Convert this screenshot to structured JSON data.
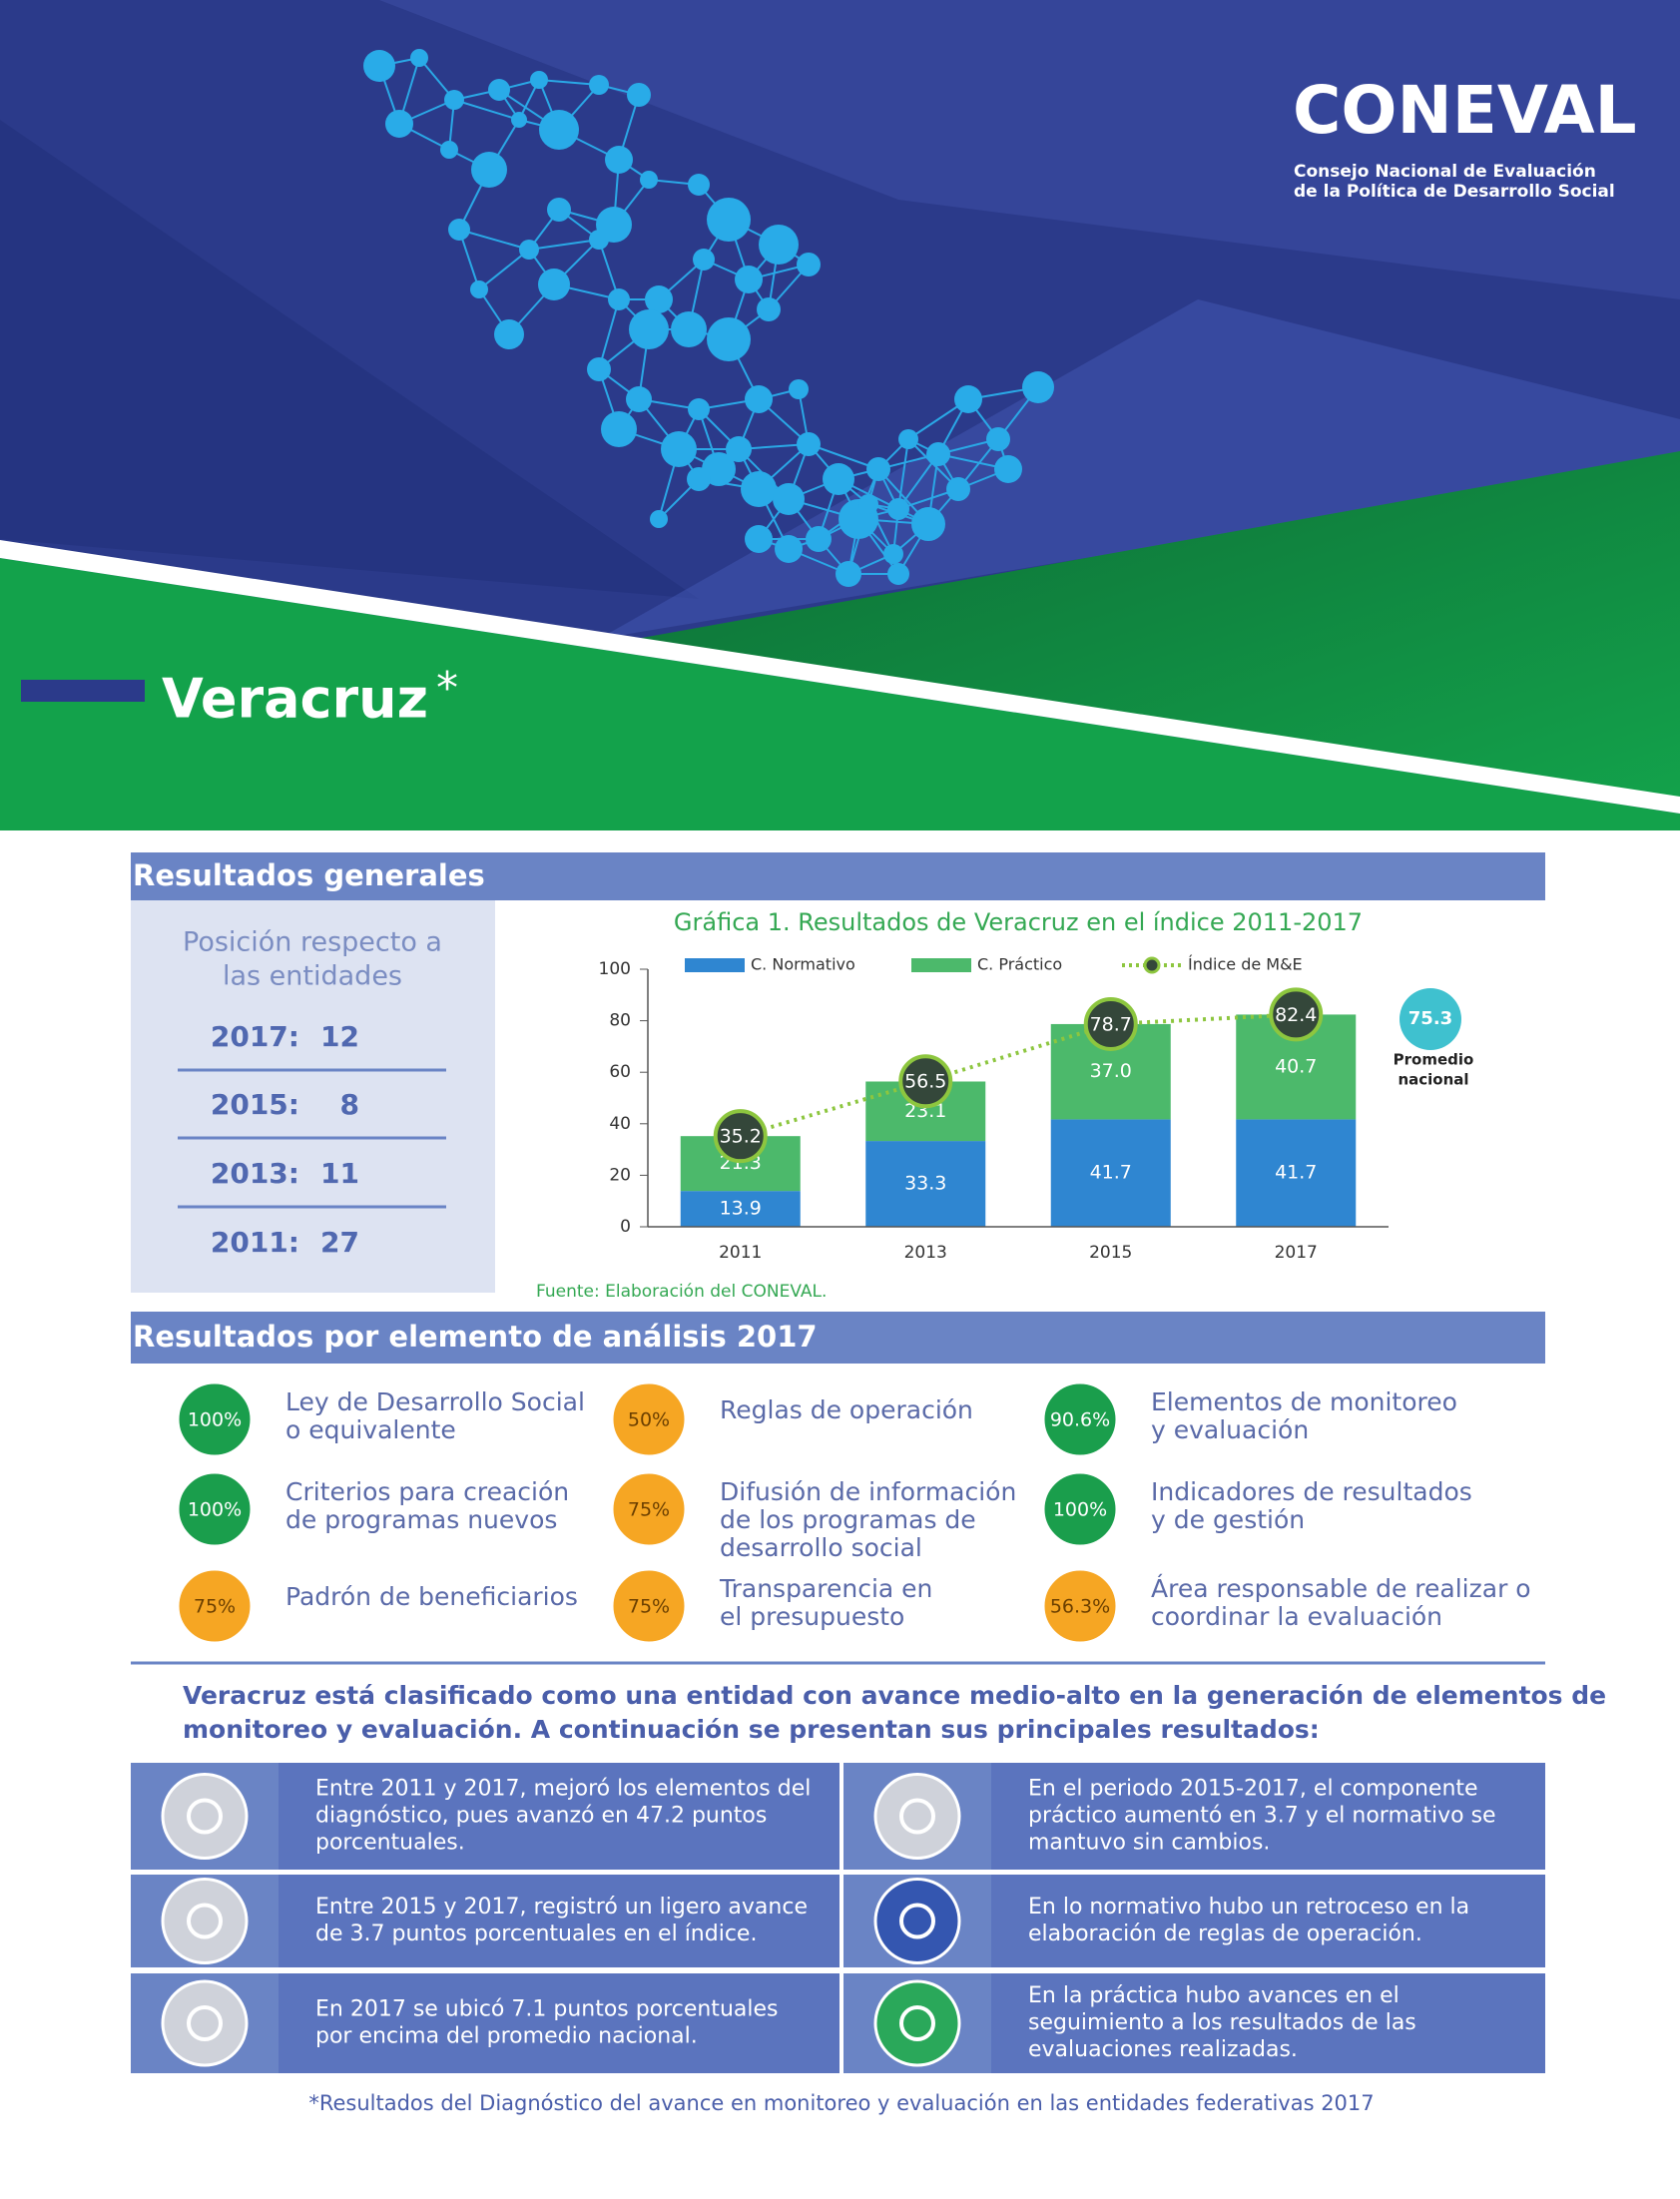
{
  "header": {
    "logo": "CONEVAL",
    "logo_lines": [
      "Consejo Nacional de Evaluación",
      "de la Política de Desarrollo Social"
    ],
    "title": "Veracruz",
    "title_mark": "*"
  },
  "section1": {
    "title": "Resultados generales"
  },
  "position": {
    "title_lines": [
      "Posición respecto a",
      "las entidades"
    ],
    "rows": [
      {
        "year": "2017:",
        "rank": 12
      },
      {
        "year": "2015:",
        "rank": 8
      },
      {
        "year": "2013:",
        "rank": 11
      },
      {
        "year": "2011:",
        "rank": 27
      }
    ]
  },
  "chart_data": {
    "type": "bar",
    "stacked": true,
    "title": "Gráfica 1. Resultados de Veracruz en el índice 2011-2017",
    "categories": [
      "2011",
      "2013",
      "2015",
      "2017"
    ],
    "series": [
      {
        "name": "C. Normativo",
        "color": "#2f86d1",
        "values": [
          13.9,
          33.3,
          41.7,
          41.7
        ]
      },
      {
        "name": "C. Práctico",
        "color": "#4cb96b",
        "values": [
          21.3,
          23.1,
          37.0,
          40.7
        ],
        "value_labels": [
          "21.3",
          "23.1",
          "37.0",
          "40.7"
        ]
      },
      {
        "name": "Índice de M&E",
        "type": "line",
        "color": "#8dc63f",
        "values": [
          35.2,
          56.5,
          78.7,
          82.4
        ]
      }
    ],
    "ylim": [
      0,
      100
    ],
    "yticks": [
      0,
      20,
      40,
      60,
      80,
      100
    ],
    "national_average": {
      "value": 75.3,
      "color": "#3fc1cf",
      "label_lines": [
        "Promedio",
        "nacional"
      ]
    },
    "source": "Fuente: Elaboración del CONEVAL."
  },
  "section2": {
    "title": "Resultados por elemento de análisis 2017"
  },
  "elements": [
    {
      "value": "100%",
      "color": "#1a9e4c",
      "label_color": "#ffffff",
      "lines": [
        "Ley de Desarrollo Social",
        "o equivalente"
      ]
    },
    {
      "value": "50%",
      "color": "#f6a623",
      "label_color": "#6b3f00",
      "lines": [
        "Reglas de operación"
      ]
    },
    {
      "value": "90.6%",
      "color": "#1a9e4c",
      "label_color": "#ffffff",
      "lines": [
        "Elementos de monitoreo",
        "y evaluación"
      ]
    },
    {
      "value": "100%",
      "color": "#1a9e4c",
      "label_color": "#ffffff",
      "lines": [
        "Criterios para creación",
        "de programas nuevos"
      ]
    },
    {
      "value": "75%",
      "color": "#f6a623",
      "label_color": "#6b3f00",
      "lines": [
        "Difusión de información",
        "de los programas de",
        "desarrollo social"
      ]
    },
    {
      "value": "100%",
      "color": "#1a9e4c",
      "label_color": "#ffffff",
      "lines": [
        "Indicadores de resultados",
        "y de gestión"
      ]
    },
    {
      "value": "75%",
      "color": "#f6a623",
      "label_color": "#6b3f00",
      "lines": [
        "Padrón de beneficiarios"
      ]
    },
    {
      "value": "75%",
      "color": "#f6a623",
      "label_color": "#6b3f00",
      "lines": [
        "Transparencia en",
        "el presupuesto"
      ]
    },
    {
      "value": "56.3%",
      "color": "#f6a623",
      "label_color": "#6b3f00",
      "lines": [
        "Área responsable de realizar o",
        "coordinar la evaluación"
      ]
    }
  ],
  "summary": {
    "lines": [
      "Veracruz está clasificado como una entidad con avance medio-alto en la generación de elementos de",
      "monitoreo y evaluación. A continuación se presentan sus principales resultados:"
    ]
  },
  "findings": [
    {
      "lines": [
        "Entre 2011 y 2017, mejoró los elementos del",
        "diagnóstico, pues avanzó en 47.2 puntos",
        "porcentuales."
      ]
    },
    {
      "lines": [
        "En el periodo 2015-2017, el componente",
        "práctico aumentó en 3.7 y el normativo se",
        "mantuvo sin cambios."
      ]
    },
    {
      "lines": [
        "Entre 2015 y 2017, registró un ligero avance",
        "de 3.7 puntos porcentuales en el índice."
      ]
    },
    {
      "lines": [
        "En lo normativo hubo un retroceso en la",
        "elaboración de reglas de operación."
      ]
    },
    {
      "lines": [
        "En 2017 se ubicó 7.1 puntos porcentuales",
        "por encima del promedio nacional."
      ]
    },
    {
      "lines": [
        "En la práctica hubo avances en el",
        "seguimiento a los resultados de las",
        "evaluaciones realizadas."
      ]
    }
  ],
  "footnote": "*Resultados del Diagnóstico del avance en monitoreo y evaluación en las entidades federativas 2017"
}
